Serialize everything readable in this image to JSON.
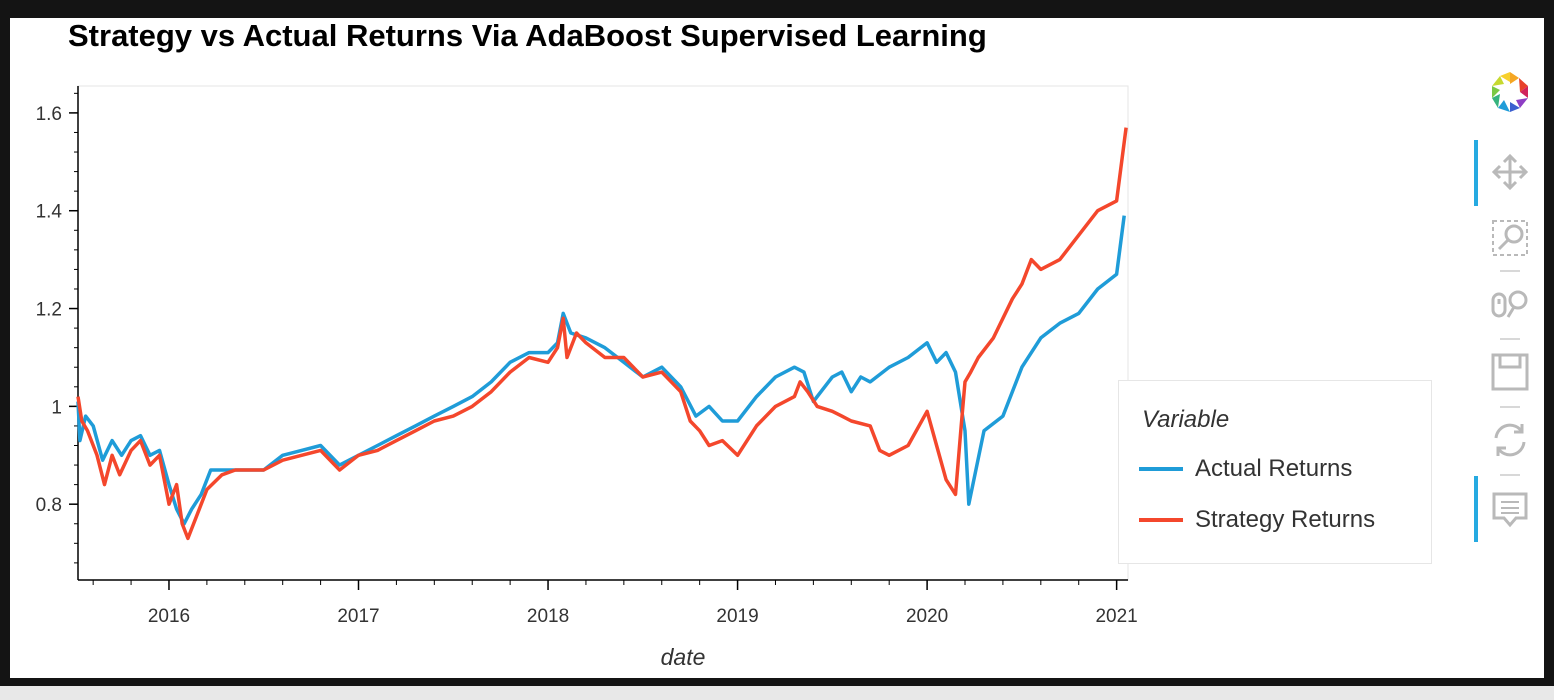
{
  "chart_data": {
    "type": "line",
    "title": "Strategy vs Actual Returns Via AdaBoost Supervised Learning",
    "xlabel": "date",
    "ylabel": "",
    "xlim": [
      2015.52,
      2021.06
    ],
    "ylim": [
      0.645,
      1.655
    ],
    "x_ticks": [
      2016,
      2017,
      2018,
      2019,
      2020,
      2021
    ],
    "x_tick_labels": [
      "2016",
      "2017",
      "2018",
      "2019",
      "2020",
      "2021"
    ],
    "y_ticks": [
      0.8,
      1.0,
      1.2,
      1.4,
      1.6
    ],
    "y_tick_labels": [
      "0.8",
      "1",
      "1.2",
      "1.4",
      "1.6"
    ],
    "legend_title": "Variable",
    "legend_position": "right",
    "series": [
      {
        "name": "Actual Returns",
        "color": "#1f9cd8",
        "x": [
          2015.52,
          2015.53,
          2015.56,
          2015.6,
          2015.65,
          2015.7,
          2015.75,
          2015.8,
          2015.85,
          2015.9,
          2015.95,
          2016.0,
          2016.04,
          2016.08,
          2016.12,
          2016.17,
          2016.22,
          2016.28,
          2016.35,
          2016.5,
          2016.6,
          2016.7,
          2016.8,
          2016.9,
          2017.0,
          2017.1,
          2017.2,
          2017.3,
          2017.4,
          2017.5,
          2017.6,
          2017.7,
          2017.8,
          2017.9,
          2018.0,
          2018.05,
          2018.08,
          2018.12,
          2018.2,
          2018.3,
          2018.4,
          2018.5,
          2018.6,
          2018.7,
          2018.78,
          2018.85,
          2018.92,
          2019.0,
          2019.1,
          2019.2,
          2019.3,
          2019.35,
          2019.4,
          2019.5,
          2019.55,
          2019.6,
          2019.65,
          2019.7,
          2019.8,
          2019.9,
          2020.0,
          2020.05,
          2020.1,
          2020.15,
          2020.2,
          2020.22,
          2020.3,
          2020.4,
          2020.5,
          2020.6,
          2020.7,
          2020.8,
          2020.9,
          2021.0,
          2021.04
        ],
        "values": [
          1.01,
          0.93,
          0.98,
          0.96,
          0.89,
          0.93,
          0.9,
          0.93,
          0.94,
          0.9,
          0.91,
          0.84,
          0.79,
          0.76,
          0.79,
          0.82,
          0.87,
          0.87,
          0.87,
          0.87,
          0.9,
          0.91,
          0.92,
          0.88,
          0.9,
          0.92,
          0.94,
          0.96,
          0.98,
          1.0,
          1.02,
          1.05,
          1.09,
          1.11,
          1.11,
          1.13,
          1.19,
          1.15,
          1.14,
          1.12,
          1.09,
          1.06,
          1.08,
          1.04,
          0.98,
          1.0,
          0.97,
          0.97,
          1.02,
          1.06,
          1.08,
          1.07,
          1.01,
          1.06,
          1.07,
          1.03,
          1.06,
          1.05,
          1.08,
          1.1,
          1.13,
          1.09,
          1.11,
          1.07,
          0.95,
          0.8,
          0.95,
          0.98,
          1.08,
          1.14,
          1.17,
          1.19,
          1.24,
          1.27,
          1.39
        ]
      },
      {
        "name": "Strategy Returns",
        "color": "#f4472c",
        "x": [
          2015.52,
          2015.54,
          2015.57,
          2015.62,
          2015.66,
          2015.7,
          2015.74,
          2015.8,
          2015.85,
          2015.9,
          2015.95,
          2016.0,
          2016.04,
          2016.07,
          2016.1,
          2016.14,
          2016.2,
          2016.28,
          2016.35,
          2016.5,
          2016.6,
          2016.7,
          2016.8,
          2016.9,
          2017.0,
          2017.1,
          2017.2,
          2017.3,
          2017.4,
          2017.5,
          2017.6,
          2017.7,
          2017.8,
          2017.9,
          2018.0,
          2018.05,
          2018.08,
          2018.1,
          2018.15,
          2018.2,
          2018.3,
          2018.4,
          2018.5,
          2018.6,
          2018.7,
          2018.75,
          2018.8,
          2018.85,
          2018.92,
          2019.0,
          2019.1,
          2019.2,
          2019.3,
          2019.33,
          2019.37,
          2019.42,
          2019.5,
          2019.55,
          2019.6,
          2019.7,
          2019.75,
          2019.8,
          2019.9,
          2020.0,
          2020.05,
          2020.1,
          2020.15,
          2020.18,
          2020.2,
          2020.23,
          2020.27,
          2020.35,
          2020.45,
          2020.5,
          2020.55,
          2020.6,
          2020.7,
          2020.8,
          2020.9,
          2021.0,
          2021.03,
          2021.05
        ],
        "values": [
          1.02,
          0.97,
          0.95,
          0.9,
          0.84,
          0.9,
          0.86,
          0.91,
          0.93,
          0.88,
          0.9,
          0.8,
          0.84,
          0.76,
          0.73,
          0.77,
          0.83,
          0.86,
          0.87,
          0.87,
          0.89,
          0.9,
          0.91,
          0.87,
          0.9,
          0.91,
          0.93,
          0.95,
          0.97,
          0.98,
          1.0,
          1.03,
          1.07,
          1.1,
          1.09,
          1.12,
          1.18,
          1.1,
          1.15,
          1.13,
          1.1,
          1.1,
          1.06,
          1.07,
          1.03,
          0.97,
          0.95,
          0.92,
          0.93,
          0.9,
          0.96,
          1.0,
          1.02,
          1.05,
          1.03,
          1.0,
          0.99,
          0.98,
          0.97,
          0.96,
          0.91,
          0.9,
          0.92,
          0.99,
          0.92,
          0.85,
          0.82,
          0.96,
          1.05,
          1.07,
          1.1,
          1.14,
          1.22,
          1.25,
          1.3,
          1.28,
          1.3,
          1.35,
          1.4,
          1.42,
          1.51,
          1.57
        ]
      }
    ]
  },
  "toolbar": {
    "tools": [
      {
        "name": "bokeh-logo-icon",
        "active": false
      },
      {
        "name": "pan-icon",
        "active": true
      },
      {
        "name": "box-zoom-icon",
        "active": false
      },
      {
        "name": "wheel-zoom-icon",
        "active": false
      },
      {
        "name": "save-icon",
        "active": false
      },
      {
        "name": "reset-icon",
        "active": false
      },
      {
        "name": "hover-icon",
        "active": true
      }
    ]
  }
}
